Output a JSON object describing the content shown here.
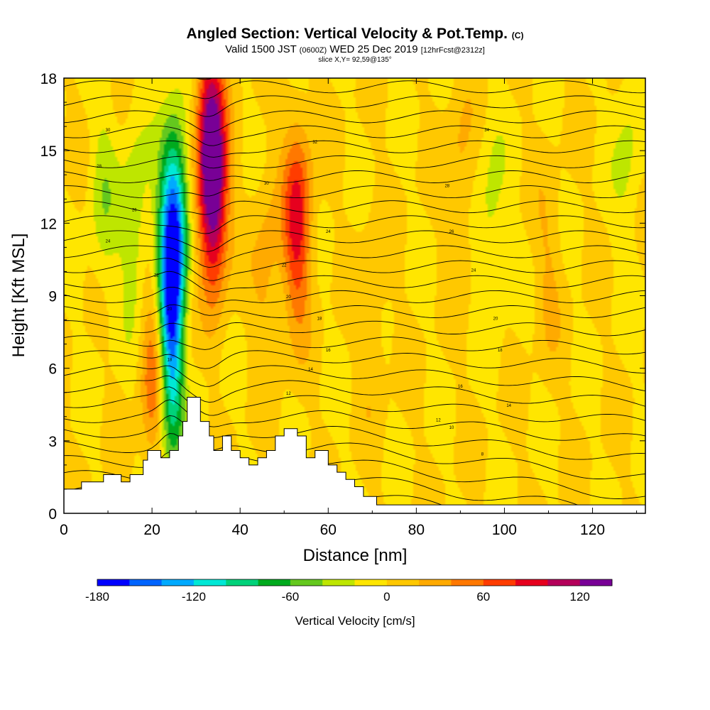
{
  "header": {
    "title": "Angled Section: Vertical Velocity & Pot.Temp.",
    "title_unit": "(C)",
    "valid_prefix": "Valid 1500 JST",
    "valid_z": "(0600Z)",
    "valid_date": "WED 25 Dec 2019",
    "valid_fcst": "[12hrFcst@2312z]",
    "slice": "slice X,Y= 92,59@135°"
  },
  "chart_data": {
    "type": "heatmap",
    "title": "Angled Section: Vertical Velocity & Pot.Temp.",
    "xlabel": "Distance [nm]",
    "ylabel": "Height [Kft MSL]",
    "xlim": [
      0,
      132
    ],
    "ylim": [
      0,
      18
    ],
    "xticks": [
      "0",
      "20",
      "40",
      "60",
      "80",
      "100",
      "120"
    ],
    "yticks": [
      "0",
      "3",
      "6",
      "9",
      "12",
      "15",
      "18"
    ],
    "background_value": 0,
    "features": [
      {
        "x": 25,
        "y": 12,
        "value": -150
      },
      {
        "x": 24,
        "y": 8,
        "value": -110
      },
      {
        "x": 24.5,
        "y": 5,
        "value": -80
      },
      {
        "x": 16,
        "y": 12,
        "value": -40
      },
      {
        "x": 9,
        "y": 13,
        "value": -30
      },
      {
        "x": 97,
        "y": 12,
        "value": -30
      },
      {
        "x": 128,
        "y": 15,
        "value": -25
      },
      {
        "x": 29,
        "y": 7,
        "value": -50
      },
      {
        "x": 34,
        "y": 13,
        "value": 120
      },
      {
        "x": 33,
        "y": 16,
        "value": 90
      },
      {
        "x": 53,
        "y": 12,
        "value": 90
      },
      {
        "x": 21,
        "y": 6,
        "value": 80
      },
      {
        "x": 28,
        "y": 7,
        "value": 75
      },
      {
        "x": 46,
        "y": 10,
        "value": 30
      },
      {
        "x": 90,
        "y": 14,
        "value": 25
      },
      {
        "x": 110,
        "y": 10,
        "value": 20
      },
      {
        "x": 70,
        "y": 8,
        "value": 20
      }
    ],
    "terrain_kft": [
      [
        0,
        1.0
      ],
      [
        4,
        1.0
      ],
      [
        4,
        1.3
      ],
      [
        9,
        1.3
      ],
      [
        9,
        1.6
      ],
      [
        13,
        1.6
      ],
      [
        13,
        1.3
      ],
      [
        15,
        1.3
      ],
      [
        15,
        1.6
      ],
      [
        18,
        1.6
      ],
      [
        18,
        2.2
      ],
      [
        19,
        2.2
      ],
      [
        19,
        2.6
      ],
      [
        22,
        2.6
      ],
      [
        22,
        2.3
      ],
      [
        24,
        2.3
      ],
      [
        24,
        2.6
      ],
      [
        26,
        2.6
      ],
      [
        26,
        3.2
      ],
      [
        27,
        3.2
      ],
      [
        27,
        3.8
      ],
      [
        28,
        3.8
      ],
      [
        28,
        4.8
      ],
      [
        31,
        4.8
      ],
      [
        31,
        3.8
      ],
      [
        33,
        3.8
      ],
      [
        33,
        3.2
      ],
      [
        34,
        3.2
      ],
      [
        34,
        2.6
      ],
      [
        36,
        2.6
      ],
      [
        36,
        3.2
      ],
      [
        38,
        3.2
      ],
      [
        38,
        2.6
      ],
      [
        40,
        2.6
      ],
      [
        40,
        2.3
      ],
      [
        42,
        2.3
      ],
      [
        42,
        2.0
      ],
      [
        44,
        2.0
      ],
      [
        44,
        2.3
      ],
      [
        46,
        2.3
      ],
      [
        46,
        2.6
      ],
      [
        48,
        2.6
      ],
      [
        48,
        3.2
      ],
      [
        50,
        3.2
      ],
      [
        50,
        3.5
      ],
      [
        53,
        3.5
      ],
      [
        53,
        3.2
      ],
      [
        55,
        3.2
      ],
      [
        55,
        2.3
      ],
      [
        57,
        2.3
      ],
      [
        57,
        2.6
      ],
      [
        60,
        2.6
      ],
      [
        60,
        2.0
      ],
      [
        62,
        2.0
      ],
      [
        62,
        1.7
      ],
      [
        64,
        1.7
      ],
      [
        64,
        1.4
      ],
      [
        66,
        1.4
      ],
      [
        66,
        1.1
      ],
      [
        68,
        1.1
      ],
      [
        68,
        0.7
      ],
      [
        71,
        0.7
      ],
      [
        71,
        0.35
      ],
      [
        132,
        0.35
      ]
    ],
    "pot_temp_labels": [
      {
        "x": 10,
        "y": 15.8,
        "text": "30"
      },
      {
        "x": 8,
        "y": 14.3,
        "text": "28"
      },
      {
        "x": 16,
        "y": 12.5,
        "text": "26"
      },
      {
        "x": 10,
        "y": 11.2,
        "text": "24"
      },
      {
        "x": 21,
        "y": 9.8,
        "text": "22"
      },
      {
        "x": 24,
        "y": 8.4,
        "text": "20"
      },
      {
        "x": 24,
        "y": 6.3,
        "text": "18"
      },
      {
        "x": 57,
        "y": 15.3,
        "text": "32"
      },
      {
        "x": 46,
        "y": 13.6,
        "text": "30"
      },
      {
        "x": 60,
        "y": 11.6,
        "text": "24"
      },
      {
        "x": 50,
        "y": 10.2,
        "text": "22"
      },
      {
        "x": 51,
        "y": 8.9,
        "text": "20"
      },
      {
        "x": 58,
        "y": 8.0,
        "text": "18"
      },
      {
        "x": 60,
        "y": 6.7,
        "text": "16"
      },
      {
        "x": 56,
        "y": 5.9,
        "text": "14"
      },
      {
        "x": 51,
        "y": 4.9,
        "text": "12"
      },
      {
        "x": 96,
        "y": 15.8,
        "text": "34"
      },
      {
        "x": 87,
        "y": 13.5,
        "text": "28"
      },
      {
        "x": 88,
        "y": 11.6,
        "text": "26"
      },
      {
        "x": 93,
        "y": 10.0,
        "text": "24"
      },
      {
        "x": 98,
        "y": 8.0,
        "text": "20"
      },
      {
        "x": 99,
        "y": 6.7,
        "text": "18"
      },
      {
        "x": 90,
        "y": 5.2,
        "text": "16"
      },
      {
        "x": 101,
        "y": 4.4,
        "text": "14"
      },
      {
        "x": 85,
        "y": 3.8,
        "text": "12"
      },
      {
        "x": 88,
        "y": 3.5,
        "text": "10"
      },
      {
        "x": 95,
        "y": 2.4,
        "text": "8"
      }
    ],
    "colorbar": {
      "title": "Vertical Velocity [cm/s]",
      "tick_values": [
        -180,
        -120,
        -60,
        0,
        60,
        120
      ],
      "tick_labels": [
        "-180",
        "-120",
        "-60",
        "0",
        "60",
        "120"
      ],
      "levels": [
        -180,
        -160,
        -140,
        -120,
        -100,
        -80,
        -60,
        -40,
        -20,
        0,
        20,
        40,
        60,
        80,
        100,
        120,
        140
      ],
      "colors": [
        "#0000ff",
        "#0064ff",
        "#00aaff",
        "#00e8d6",
        "#00d27a",
        "#00aa1e",
        "#64c81e",
        "#bee600",
        "#ffe600",
        "#ffc800",
        "#ffaa00",
        "#ff7800",
        "#ff3c00",
        "#e6001e",
        "#b4005a",
        "#780096"
      ]
    }
  }
}
